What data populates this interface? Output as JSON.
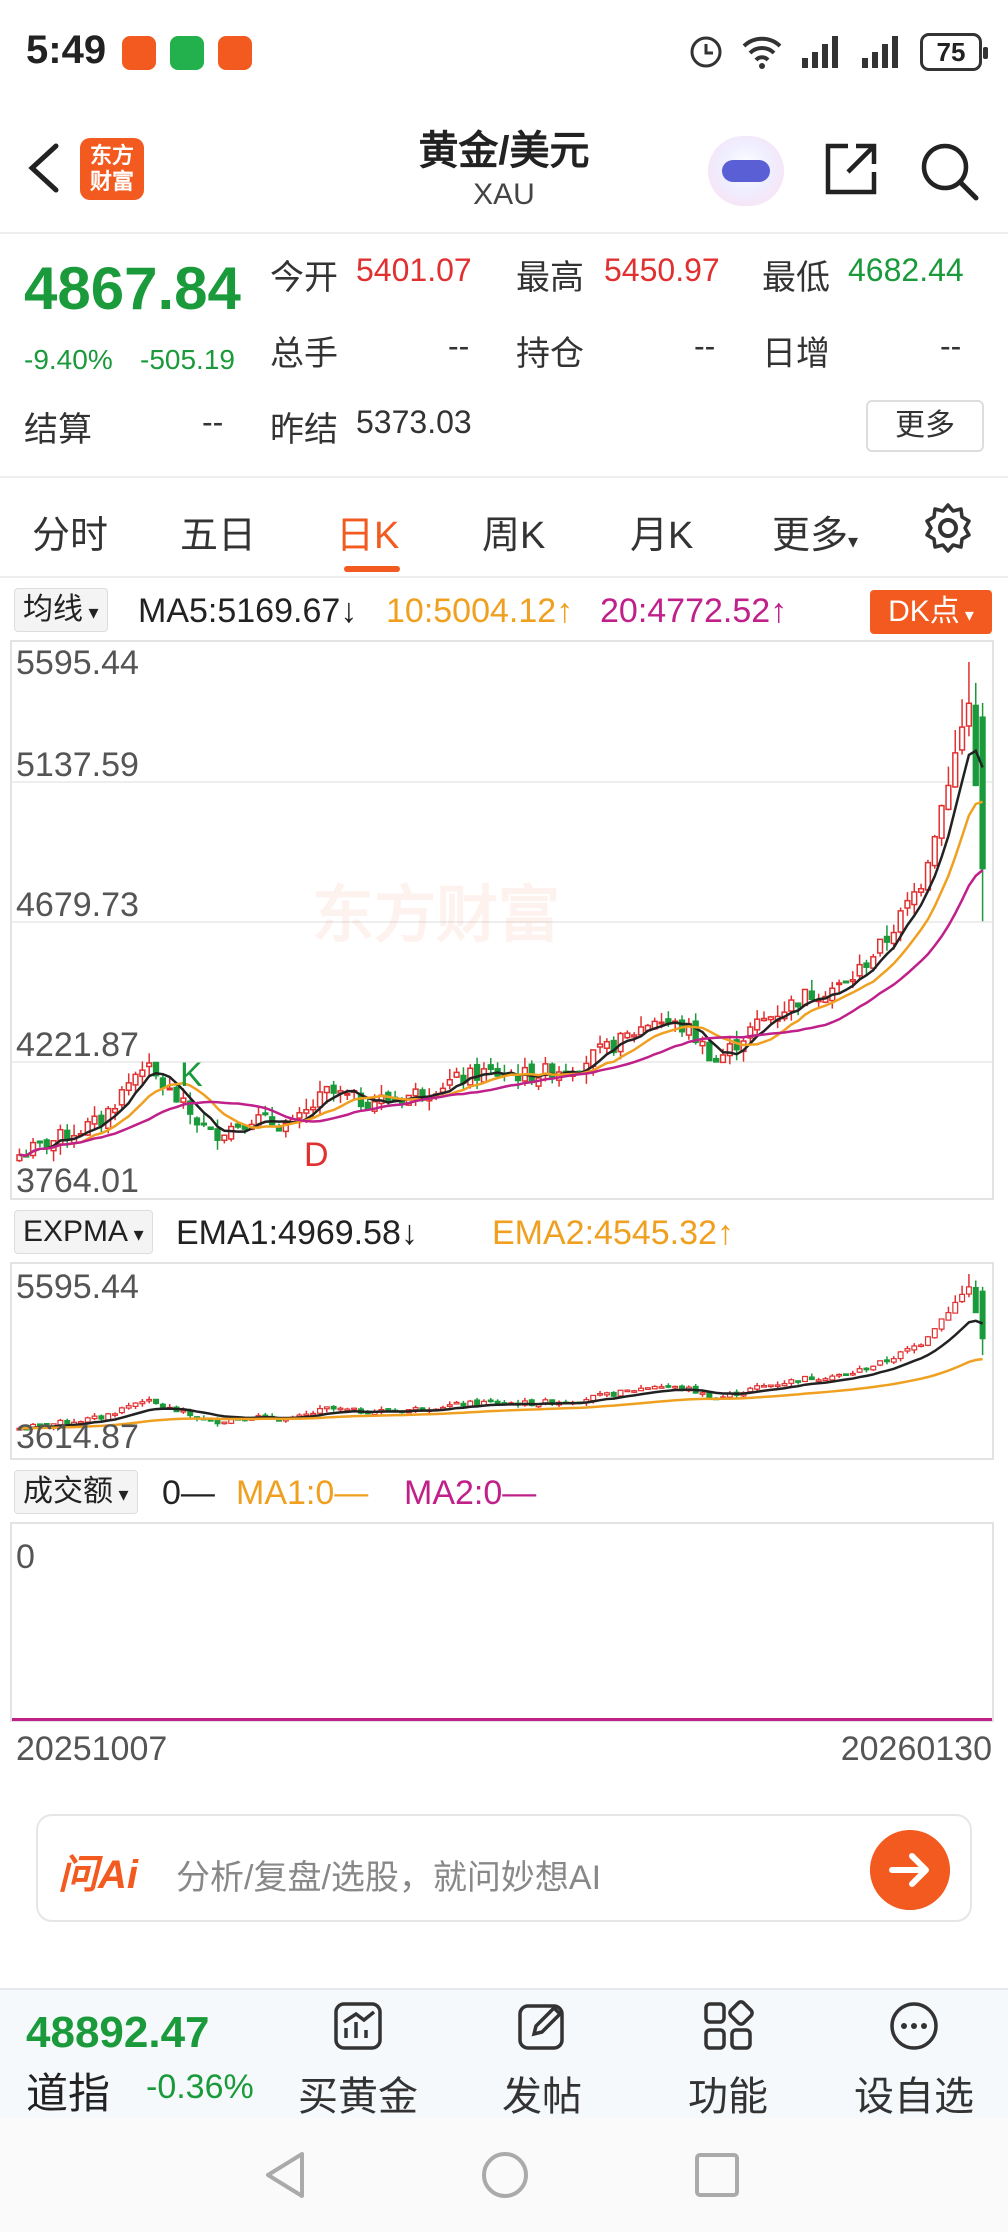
{
  "status_bar": {
    "time": "5:49",
    "battery": "75"
  },
  "header": {
    "logo_text": "东方财富",
    "title": "黄金/美元",
    "subtitle": "XAU"
  },
  "quote": {
    "price": "4867.84",
    "change_pct": "-9.40%",
    "change": "-505.19",
    "open_label": "今开",
    "open": "5401.07",
    "high_label": "最高",
    "high": "5450.97",
    "low_label": "最低",
    "low": "4682.44",
    "volume_label": "总手",
    "volume": "--",
    "position_label": "持仓",
    "position": "--",
    "daily_inc_label": "日增",
    "daily_inc": "--",
    "settle_label": "结算",
    "settle": "--",
    "prev_settle_label": "昨结",
    "prev_settle": "5373.03",
    "more_label": "更多"
  },
  "tabs": [
    {
      "label": "分时"
    },
    {
      "label": "五日"
    },
    {
      "label": "日K"
    },
    {
      "label": "周K"
    },
    {
      "label": "月K"
    },
    {
      "label": "更多"
    }
  ],
  "main_indicator": {
    "select": "均线",
    "ma5": "MA5:5169.67↓",
    "ma10": "10:5004.12↑",
    "ma20": "20:4772.52↑",
    "dk_label": "DK点",
    "y_max": "5595.44",
    "y_2": "5137.59",
    "y_3": "4679.73",
    "y_4": "4221.87",
    "y_min": "3764.01",
    "signal_k": "K",
    "signal_d": "D",
    "watermark": "东方财富"
  },
  "expma": {
    "select": "EXPMA",
    "ema1": "EMA1:4969.58↓",
    "ema2": "EMA2:4545.32↑",
    "y_max": "5595.44",
    "y_min": "3614.87"
  },
  "volume_panel": {
    "select": "成交额",
    "vol": "0—",
    "ma1": "MA1:0—",
    "ma2": "MA2:0—",
    "y_value": "0"
  },
  "dates": {
    "start": "20251007",
    "end": "20260130"
  },
  "ai_bar": {
    "logo": "问Ai",
    "placeholder": "分析/复盘/选股，就问妙想AI"
  },
  "bottom_bar": {
    "index_value": "48892.47",
    "index_name": "道指",
    "index_change": "-0.36%",
    "items": [
      {
        "label": "买黄金"
      },
      {
        "label": "发帖"
      },
      {
        "label": "功能"
      },
      {
        "label": "设自选"
      }
    ]
  },
  "colors": {
    "up": "#e03030",
    "down": "#1a9a3a",
    "accent": "#f25a1f",
    "ma10": "#f0a020",
    "ma20": "#c0208a"
  },
  "chart_data": {
    "type": "candlestick",
    "x_range": [
      "20251007",
      "20260130"
    ],
    "ylim": [
      3764.01,
      5595.44
    ],
    "last_close": 4867.84
  }
}
